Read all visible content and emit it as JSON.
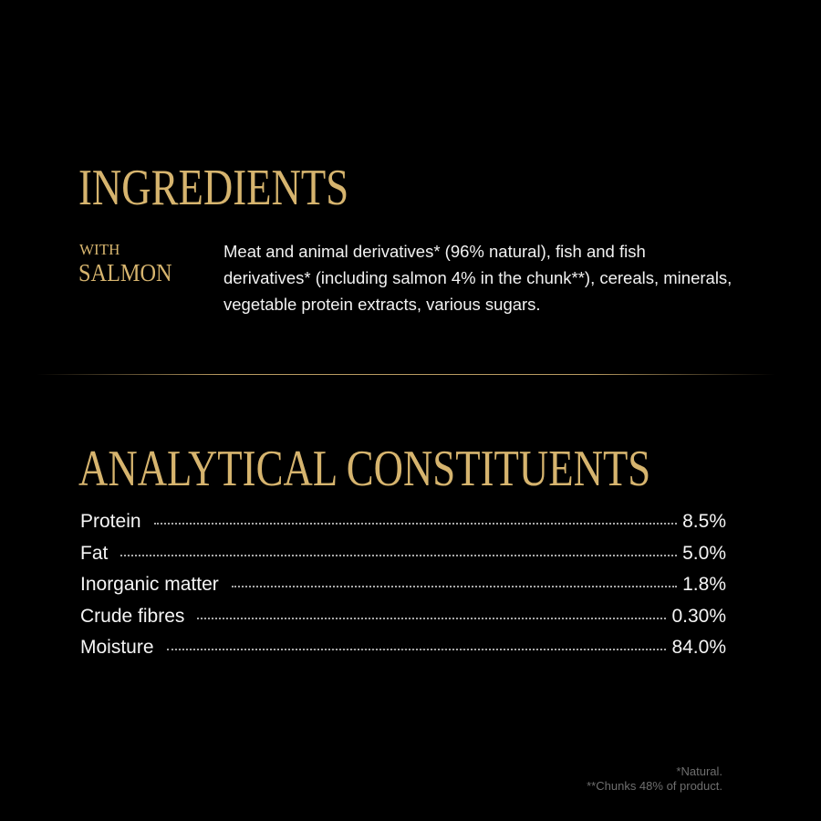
{
  "ingredients": {
    "title": "INGREDIENTS",
    "variant_prefix": "WITH",
    "variant_name": "SALMON",
    "text": "Meat and animal derivatives* (96% natural), fish and fish derivatives* (including salmon 4% in the chunk**), cereals, minerals, vegetable protein extracts, various sugars."
  },
  "analytical": {
    "title": "ANALYTICAL CONSTITUENTS",
    "rows": [
      {
        "label": "Protein",
        "value": "8.5%"
      },
      {
        "label": "Fat",
        "value": "5.0%"
      },
      {
        "label": "Inorganic matter",
        "value": "1.8%"
      },
      {
        "label": "Crude fibres",
        "value": "0.30%"
      },
      {
        "label": "Moisture",
        "value": "84.0%"
      }
    ]
  },
  "footnotes": [
    "*Natural.",
    "**Chunks 48% of product."
  ],
  "colors": {
    "accent": "#d6b46e",
    "background": "#000000"
  }
}
